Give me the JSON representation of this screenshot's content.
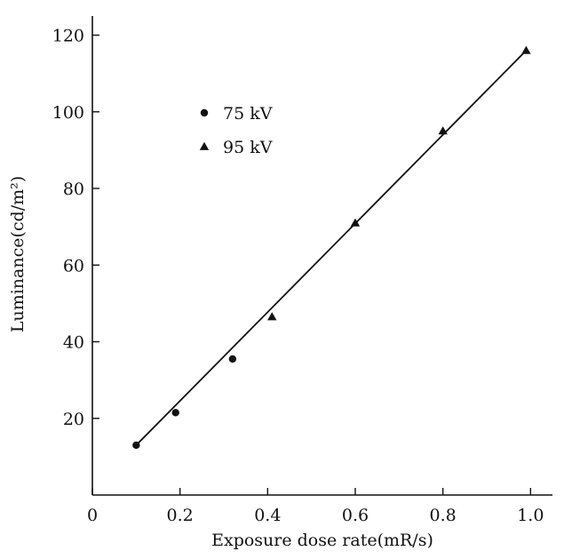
{
  "chart_data": {
    "type": "scatter",
    "title": "",
    "xlabel": "Exposure dose rate(mR/s)",
    "ylabel": "Luminance(cd/m²)",
    "xlim": [
      0,
      1.05
    ],
    "ylim": [
      0,
      125
    ],
    "x_ticks": [
      0,
      0.2,
      0.4,
      0.6,
      0.8,
      1.0
    ],
    "x_tick_labels": [
      "0",
      "0.2",
      "0.4",
      "0.6",
      "0.8",
      "1.0"
    ],
    "y_ticks": [
      20,
      40,
      60,
      80,
      100,
      120
    ],
    "y_tick_labels": [
      "20",
      "40",
      "60",
      "80",
      "100",
      "120"
    ],
    "grid": false,
    "legend_position": "upper-left",
    "series": [
      {
        "name": "75 kV",
        "marker": "circle",
        "points": [
          {
            "x": 0.1,
            "y": 13
          },
          {
            "x": 0.19,
            "y": 21.5
          },
          {
            "x": 0.32,
            "y": 35.5
          }
        ]
      },
      {
        "name": "95 kV",
        "marker": "triangle",
        "points": [
          {
            "x": 0.41,
            "y": 46.5
          },
          {
            "x": 0.6,
            "y": 71
          },
          {
            "x": 0.8,
            "y": 95
          },
          {
            "x": 0.99,
            "y": 116
          }
        ]
      }
    ],
    "fit_line": {
      "x": [
        0.1,
        0.99
      ],
      "y": [
        13,
        116
      ]
    },
    "colors": {
      "ink": "#111111"
    }
  }
}
